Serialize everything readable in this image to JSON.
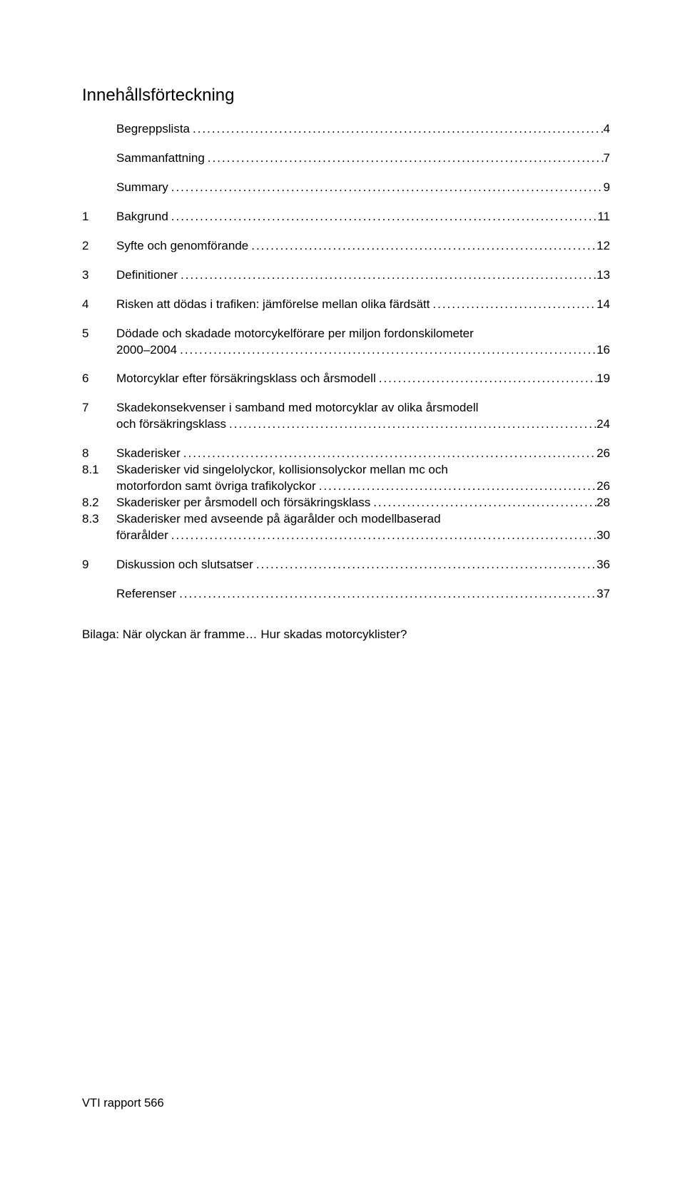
{
  "title": "Innehållsförteckning",
  "page_bg": "#ffffff",
  "text_color": "#000000",
  "title_fontsize": 24,
  "body_fontsize": 17,
  "entries": [
    {
      "num": "",
      "text": "Begreppslista",
      "page": "4",
      "type": "section"
    },
    {
      "num": "",
      "text": "Sammanfattning",
      "page": "7",
      "type": "section"
    },
    {
      "num": "",
      "text": "Summary",
      "page": "9",
      "type": "section"
    },
    {
      "num": "1",
      "text": "Bakgrund",
      "page": "11",
      "type": "section"
    },
    {
      "num": "2",
      "text": "Syfte och genomförande",
      "page": "12",
      "type": "section"
    },
    {
      "num": "3",
      "text": "Definitioner",
      "page": "13",
      "type": "section"
    },
    {
      "num": "4",
      "text": "Risken att dödas i trafiken: jämförelse mellan olika färdsätt",
      "page": "14",
      "type": "section"
    },
    {
      "num": "5",
      "text": "Dödade och skadade motorcykelförare per miljon fordonskilometer",
      "page": "",
      "type": "section"
    },
    {
      "num": "",
      "text": "2000–2004",
      "page": "16",
      "type": "continuation"
    },
    {
      "num": "6",
      "text": "Motorcyklar efter försäkringsklass och årsmodell",
      "page": "19",
      "type": "section"
    },
    {
      "num": "7",
      "text": "Skadekonsekvenser i samband med motorcyklar av olika årsmodell",
      "page": "",
      "type": "section"
    },
    {
      "num": "",
      "text": "och försäkringsklass",
      "page": "24",
      "type": "continuation"
    },
    {
      "num": "8",
      "text": "Skaderisker",
      "page": "26",
      "type": "section"
    },
    {
      "num": "8.1",
      "text": "Skaderisker vid singelolyckor, kollisionsolyckor mellan mc och",
      "page": "",
      "type": "subsection"
    },
    {
      "num": "",
      "text": "motorfordon samt övriga trafikolyckor",
      "page": "26",
      "type": "continuation"
    },
    {
      "num": "8.2",
      "text": "Skaderisker per årsmodell och försäkringsklass",
      "page": "28",
      "type": "subsection"
    },
    {
      "num": "8.3",
      "text": "Skaderisker med avseende på ägarålder och modellbaserad",
      "page": "",
      "type": "subsection"
    },
    {
      "num": "",
      "text": "förarålder",
      "page": "30",
      "type": "continuation"
    },
    {
      "num": "9",
      "text": "Diskussion och slutsatser",
      "page": "36",
      "type": "section"
    },
    {
      "num": "",
      "text": "Referenser",
      "page": "37",
      "type": "section"
    }
  ],
  "appendix": "Bilaga: När olyckan är framme… Hur skadas motorcyklister?",
  "footer": "VTI rapport 566"
}
